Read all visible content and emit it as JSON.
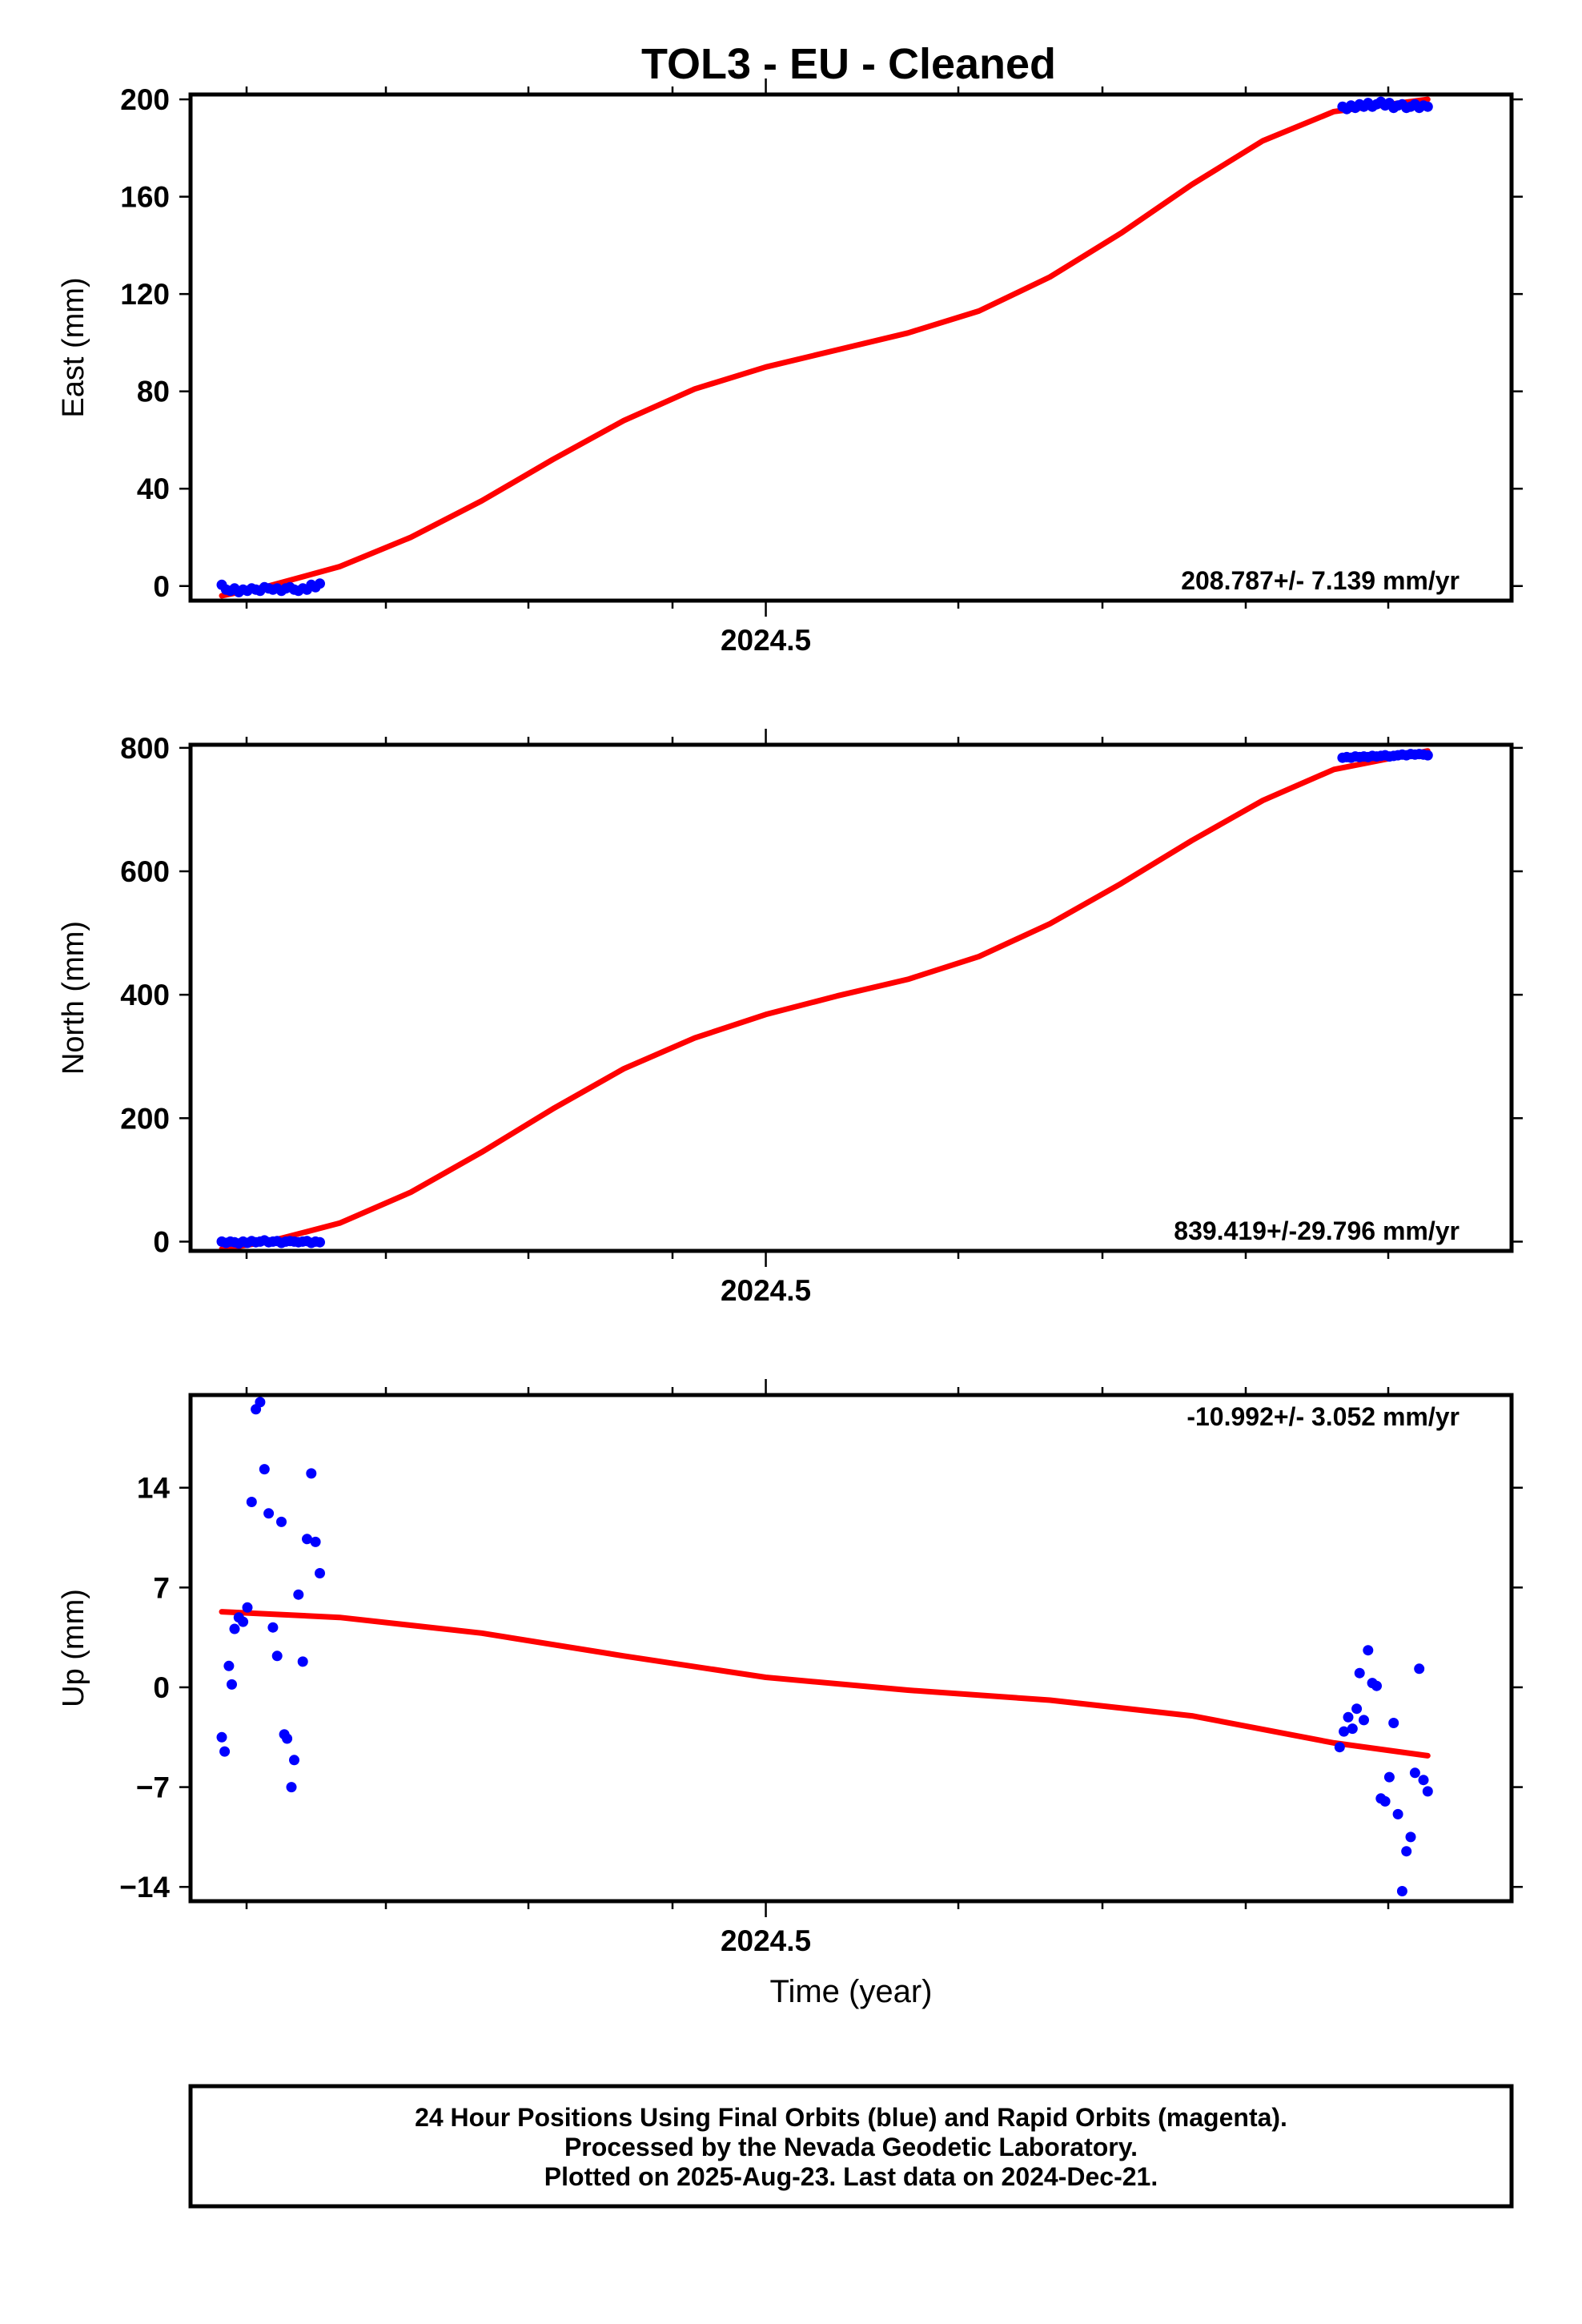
{
  "title": "TOL3  - EU - Cleaned",
  "footer": {
    "lines": [
      "24 Hour Positions Using Final Orbits (blue) and Rapid Orbits (magenta).",
      "Processed by the Nevada Geodetic Laboratory.",
      "Plotted on 2025-Aug-23. Last data on 2024-Dec-21."
    ]
  },
  "colors": {
    "points": "#0000ff",
    "fit": "#ff0000",
    "frame": "#000000"
  },
  "chart_data": [
    {
      "type": "scatter",
      "component": "east",
      "ylabel": "East (mm)",
      "xlabel": "",
      "rate_label": "208.787+/- 7.139 mm/yr",
      "rate_position": "bottom-right",
      "x_major_ticks": [
        2024.5
      ],
      "x_tick_labels": [
        "2024.5"
      ],
      "xlim": [
        2024.095,
        2025.025
      ],
      "ylim": [
        -6,
        202
      ],
      "y_ticks": [
        0,
        40,
        80,
        120,
        160,
        200
      ],
      "y_tick_labels": [
        "0",
        "40",
        "80",
        "120",
        "160",
        "200"
      ],
      "points": {
        "x": [
          2024.117,
          2024.12,
          2024.123,
          2024.126,
          2024.129,
          2024.132,
          2024.135,
          2024.138,
          2024.141,
          2024.144,
          2024.147,
          2024.15,
          2024.153,
          2024.156,
          2024.159,
          2024.162,
          2024.165,
          2024.168,
          2024.171,
          2024.174,
          2024.177,
          2024.18,
          2024.183,
          2024.186,
          2024.906,
          2024.909,
          2024.912,
          2024.915,
          2024.918,
          2024.921,
          2024.924,
          2024.927,
          2024.93,
          2024.933,
          2024.936,
          2024.939,
          2024.942,
          2024.945,
          2024.948,
          2024.951,
          2024.954,
          2024.957,
          2024.96,
          2024.963,
          2024.966
        ],
        "y": [
          0.5,
          -1.5,
          -2,
          -1,
          -2.5,
          -1.5,
          -2,
          -1,
          -1.5,
          -2,
          -0.5,
          -1,
          -1.5,
          -1,
          -2,
          -1,
          -0.5,
          -1.5,
          -2,
          -1,
          -1.5,
          0.5,
          -0.5,
          1,
          197,
          196,
          197.5,
          196.5,
          198,
          197,
          198.5,
          197,
          198,
          199,
          197.5,
          198.5,
          196.5,
          197.5,
          198,
          196.5,
          197,
          198,
          196.5,
          197.5,
          197
        ]
      },
      "fit": {
        "x": [
          2024.117,
          2024.15,
          2024.2,
          2024.25,
          2024.3,
          2024.35,
          2024.4,
          2024.45,
          2024.5,
          2024.55,
          2024.6,
          2024.65,
          2024.7,
          2024.75,
          2024.8,
          2024.85,
          2024.9,
          2024.966
        ],
        "y": [
          -4,
          0,
          8,
          20,
          35,
          52,
          68,
          81,
          90,
          97,
          104,
          113,
          127,
          145,
          165,
          183,
          195,
          200
        ]
      }
    },
    {
      "type": "scatter",
      "component": "north",
      "ylabel": "North (mm)",
      "xlabel": "",
      "rate_label": "839.419+/-29.796 mm/yr",
      "rate_position": "bottom-right",
      "x_major_ticks": [
        2024.5
      ],
      "x_tick_labels": [
        "2024.5"
      ],
      "xlim": [
        2024.095,
        2025.025
      ],
      "ylim": [
        -15,
        805
      ],
      "y_ticks": [
        0,
        200,
        400,
        600,
        800
      ],
      "y_tick_labels": [
        "0",
        "200",
        "400",
        "600",
        "800"
      ],
      "points": {
        "x": [
          2024.117,
          2024.12,
          2024.123,
          2024.126,
          2024.129,
          2024.132,
          2024.135,
          2024.138,
          2024.141,
          2024.144,
          2024.147,
          2024.15,
          2024.153,
          2024.156,
          2024.159,
          2024.162,
          2024.165,
          2024.168,
          2024.171,
          2024.174,
          2024.177,
          2024.18,
          2024.183,
          2024.186,
          2024.906,
          2024.909,
          2024.912,
          2024.915,
          2024.918,
          2024.921,
          2024.924,
          2024.927,
          2024.93,
          2024.933,
          2024.936,
          2024.939,
          2024.942,
          2024.945,
          2024.948,
          2024.951,
          2024.954,
          2024.957,
          2024.96,
          2024.963,
          2024.966
        ],
        "y": [
          0,
          -2,
          0,
          -1,
          -3,
          0,
          -2,
          1,
          -1,
          0,
          2,
          -1,
          0,
          1,
          -2,
          0,
          1,
          0,
          -1,
          0,
          1,
          -2,
          0,
          -1,
          784,
          785,
          784,
          786,
          785,
          786,
          785,
          787,
          786,
          787,
          788,
          786,
          787,
          788,
          789,
          788,
          790,
          789,
          790,
          789,
          788
        ]
      },
      "fit": {
        "x": [
          2024.117,
          2024.15,
          2024.2,
          2024.25,
          2024.3,
          2024.35,
          2024.4,
          2024.45,
          2024.5,
          2024.55,
          2024.6,
          2024.65,
          2024.7,
          2024.75,
          2024.8,
          2024.85,
          2024.9,
          2024.966
        ],
        "y": [
          -12,
          0,
          30,
          80,
          145,
          215,
          280,
          330,
          368,
          398,
          425,
          462,
          515,
          580,
          650,
          715,
          765,
          795
        ]
      }
    },
    {
      "type": "scatter",
      "component": "up",
      "ylabel": "Up (mm)",
      "xlabel": "Time (year)",
      "rate_label": "-10.992+/- 3.052 mm/yr",
      "rate_position": "top-right",
      "x_major_ticks": [
        2024.5
      ],
      "x_tick_labels": [
        "2024.5"
      ],
      "xlim": [
        2024.095,
        2025.025
      ],
      "ylim": [
        -15,
        20.5
      ],
      "y_ticks": [
        -14,
        -7,
        0,
        7,
        14
      ],
      "y_tick_labels": [
        "−14",
        "−7",
        "0",
        "7",
        "14"
      ],
      "points": {
        "x": [
          2024.117,
          2024.119,
          2024.122,
          2024.124,
          2024.126,
          2024.129,
          2024.132,
          2024.135,
          2024.138,
          2024.141,
          2024.144,
          2024.147,
          2024.15,
          2024.153,
          2024.156,
          2024.159,
          2024.161,
          2024.163,
          2024.166,
          2024.168,
          2024.171,
          2024.174,
          2024.177,
          2024.18,
          2024.183,
          2024.186,
          2024.904,
          2024.907,
          2024.91,
          2024.913,
          2024.916,
          2024.918,
          2024.921,
          2024.924,
          2024.927,
          2024.93,
          2024.933,
          2024.936,
          2024.939,
          2024.942,
          2024.945,
          2024.948,
          2024.951,
          2024.954,
          2024.957,
          2024.96,
          2024.963,
          2024.966
        ],
        "y": [
          -3.5,
          -4.5,
          1.5,
          0.2,
          4.1,
          4.9,
          4.6,
          5.6,
          13.0,
          19.5,
          20.0,
          15.3,
          12.2,
          4.2,
          2.2,
          11.6,
          -3.3,
          -3.6,
          -7.0,
          -5.1,
          6.5,
          1.8,
          10.4,
          15.0,
          10.2,
          8.0,
          -4.2,
          -3.1,
          -2.1,
          -2.9,
          -1.5,
          1.0,
          -2.3,
          2.6,
          0.3,
          0.1,
          -7.8,
          -8.0,
          -6.3,
          -2.5,
          -8.9,
          -14.3,
          -11.5,
          -10.5,
          -6.0,
          1.3,
          -6.5,
          -7.3
        ]
      },
      "fit": {
        "x": [
          2024.117,
          2024.2,
          2024.3,
          2024.4,
          2024.5,
          2024.6,
          2024.7,
          2024.8,
          2024.9,
          2024.966
        ],
        "y": [
          5.3,
          4.9,
          3.8,
          2.2,
          0.7,
          -0.2,
          -0.9,
          -2.0,
          -3.9,
          -4.8
        ]
      }
    }
  ]
}
